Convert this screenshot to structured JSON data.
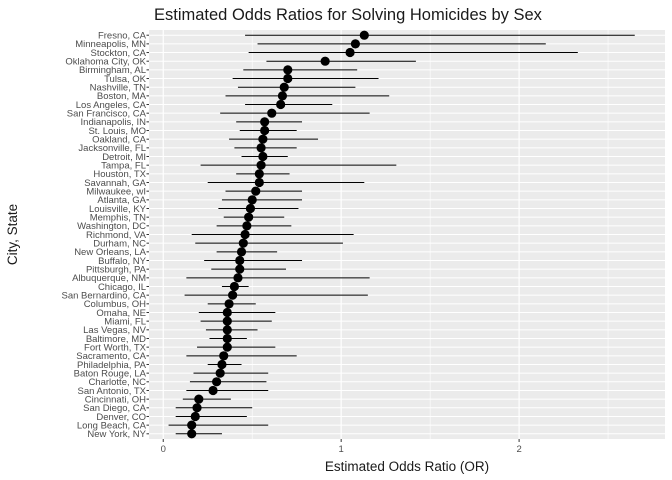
{
  "chart_data": {
    "type": "scatter",
    "title": "Estimated Odds Ratios for Solving Homicides by Sex",
    "xlabel": "Estimated Odds Ratio (OR)",
    "ylabel": "City, State",
    "xlim": [
      -0.08,
      2.82
    ],
    "xticks": [
      0,
      1,
      2
    ],
    "grid": true,
    "legend": "none",
    "colors": {
      "panel_background": "#ebebeb",
      "grid_major": "#ffffff",
      "point": "#000000",
      "errorbar": "#000000"
    },
    "points": [
      {
        "city": "Fresno, CA",
        "or": 1.13,
        "low": 0.46,
        "high": 2.65
      },
      {
        "city": "Minneapolis, MN",
        "or": 1.08,
        "low": 0.53,
        "high": 2.15
      },
      {
        "city": "Stockton, CA",
        "or": 1.05,
        "low": 0.48,
        "high": 2.33
      },
      {
        "city": "Oklahoma City, OK",
        "or": 0.91,
        "low": 0.58,
        "high": 1.42
      },
      {
        "city": "Birmingham, AL",
        "or": 0.7,
        "low": 0.45,
        "high": 1.09
      },
      {
        "city": "Tulsa, OK",
        "or": 0.7,
        "low": 0.39,
        "high": 1.21
      },
      {
        "city": "Nashville, TN",
        "or": 0.68,
        "low": 0.42,
        "high": 1.08
      },
      {
        "city": "Boston, MA",
        "or": 0.67,
        "low": 0.35,
        "high": 1.27
      },
      {
        "city": "Los Angeles, CA",
        "or": 0.66,
        "low": 0.46,
        "high": 0.95
      },
      {
        "city": "San Francisco, CA",
        "or": 0.61,
        "low": 0.32,
        "high": 1.16
      },
      {
        "city": "Indianapolis, IN",
        "or": 0.57,
        "low": 0.41,
        "high": 0.78
      },
      {
        "city": "St. Louis, MO",
        "or": 0.57,
        "low": 0.43,
        "high": 0.75
      },
      {
        "city": "Oakland, CA",
        "or": 0.56,
        "low": 0.37,
        "high": 0.87
      },
      {
        "city": "Jacksonville, FL",
        "or": 0.55,
        "low": 0.4,
        "high": 0.75
      },
      {
        "city": "Detroit, MI",
        "or": 0.56,
        "low": 0.44,
        "high": 0.7
      },
      {
        "city": "Tampa, FL",
        "or": 0.55,
        "low": 0.21,
        "high": 1.31
      },
      {
        "city": "Houston, TX",
        "or": 0.54,
        "low": 0.41,
        "high": 0.71
      },
      {
        "city": "Savannah, GA",
        "or": 0.54,
        "low": 0.25,
        "high": 1.13
      },
      {
        "city": "Milwaukee, wI",
        "or": 0.52,
        "low": 0.35,
        "high": 0.78
      },
      {
        "city": "Atlanta, GA",
        "or": 0.5,
        "low": 0.33,
        "high": 0.78
      },
      {
        "city": "Louisville, KY",
        "or": 0.49,
        "low": 0.31,
        "high": 0.76
      },
      {
        "city": "Memphis, TN",
        "or": 0.48,
        "low": 0.34,
        "high": 0.68
      },
      {
        "city": "Washington, DC",
        "or": 0.47,
        "low": 0.3,
        "high": 0.72
      },
      {
        "city": "Richmond, VA",
        "or": 0.46,
        "low": 0.16,
        "high": 1.07
      },
      {
        "city": "Durham, NC",
        "or": 0.45,
        "low": 0.18,
        "high": 1.01
      },
      {
        "city": "New Orleans, LA",
        "or": 0.44,
        "low": 0.3,
        "high": 0.64
      },
      {
        "city": "Buffalo, NY",
        "or": 0.43,
        "low": 0.23,
        "high": 0.78
      },
      {
        "city": "Pittsburgh, PA",
        "or": 0.43,
        "low": 0.27,
        "high": 0.69
      },
      {
        "city": "Albuquerque, NM",
        "or": 0.42,
        "low": 0.13,
        "high": 1.16
      },
      {
        "city": "Chicago, IL",
        "or": 0.4,
        "low": 0.33,
        "high": 0.48
      },
      {
        "city": "San Bernardino, CA",
        "or": 0.39,
        "low": 0.12,
        "high": 1.15
      },
      {
        "city": "Columbus, OH",
        "or": 0.37,
        "low": 0.25,
        "high": 0.52
      },
      {
        "city": "Omaha, NE",
        "or": 0.36,
        "low": 0.2,
        "high": 0.63
      },
      {
        "city": "Miami, FL",
        "or": 0.36,
        "low": 0.21,
        "high": 0.61
      },
      {
        "city": "Las Vegas, NV",
        "or": 0.36,
        "low": 0.24,
        "high": 0.53
      },
      {
        "city": "Baltimore, MD",
        "or": 0.36,
        "low": 0.26,
        "high": 0.47
      },
      {
        "city": "Fort Worth, TX",
        "or": 0.36,
        "low": 0.19,
        "high": 0.63
      },
      {
        "city": "Sacramento, CA",
        "or": 0.34,
        "low": 0.13,
        "high": 0.75
      },
      {
        "city": "Philadelphia, PA",
        "or": 0.33,
        "low": 0.25,
        "high": 0.44
      },
      {
        "city": "Baton Rouge, LA",
        "or": 0.32,
        "low": 0.17,
        "high": 0.59
      },
      {
        "city": "Charlotte, NC",
        "or": 0.3,
        "low": 0.15,
        "high": 0.58
      },
      {
        "city": "San Antonio, TX",
        "or": 0.28,
        "low": 0.13,
        "high": 0.59
      },
      {
        "city": "Cincinnati, OH",
        "or": 0.2,
        "low": 0.11,
        "high": 0.38
      },
      {
        "city": "San Diego, CA",
        "or": 0.19,
        "low": 0.07,
        "high": 0.5
      },
      {
        "city": "Denver, CO",
        "or": 0.18,
        "low": 0.07,
        "high": 0.47
      },
      {
        "city": "Long Beach, CA",
        "or": 0.16,
        "low": 0.03,
        "high": 0.59
      },
      {
        "city": "New York, NY",
        "or": 0.16,
        "low": 0.07,
        "high": 0.33
      }
    ]
  }
}
